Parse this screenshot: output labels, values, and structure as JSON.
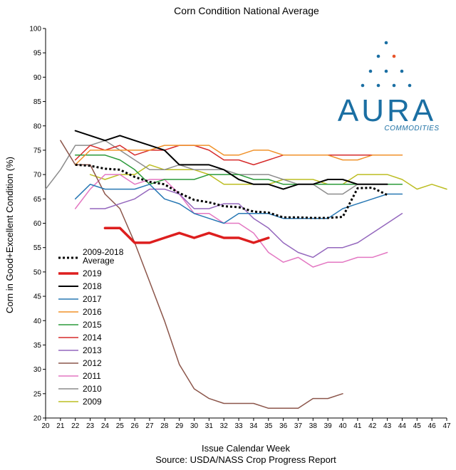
{
  "chart_data": {
    "type": "line",
    "title": "Corn Condition National Average",
    "xlabel": "Issue Calendar Week",
    "source": "Source: USDA/NASS Crop Progress Report",
    "ylabel": "Corn in Good+Excellent Condition (%)",
    "xlim": [
      20,
      47
    ],
    "ylim": [
      20,
      100
    ],
    "x_ticks": [
      20,
      21,
      22,
      23,
      24,
      25,
      26,
      27,
      28,
      29,
      30,
      31,
      32,
      33,
      34,
      35,
      36,
      37,
      38,
      39,
      40,
      41,
      42,
      43,
      44,
      45,
      46,
      47
    ],
    "y_ticks": [
      20,
      25,
      30,
      35,
      40,
      45,
      50,
      55,
      60,
      65,
      70,
      75,
      80,
      85,
      90,
      95,
      100
    ],
    "legend_position": "left",
    "series": [
      {
        "name": "2009-2018 Average",
        "label_lines": [
          "2009-2018",
          "Average"
        ],
        "color": "#000000",
        "dashed": true,
        "width": 3,
        "x": [
          22,
          23,
          24,
          25,
          26,
          27,
          28,
          29,
          30,
          31,
          32,
          33,
          34,
          35,
          36,
          37,
          38,
          39,
          40,
          41,
          42,
          43
        ],
        "y": [
          72,
          71.8,
          71.2,
          71,
          69.5,
          68.5,
          68,
          66.2,
          64.8,
          64.3,
          63.5,
          63.3,
          62.4,
          62.2,
          61.2,
          61.2,
          61.1,
          61.1,
          61.3,
          67.2,
          67.3,
          65.8
        ]
      },
      {
        "name": "2019",
        "color": "#dd1e1e",
        "width": 3.5,
        "x": [
          24,
          25,
          26,
          27,
          28,
          29,
          30,
          31,
          32,
          33,
          34,
          35
        ],
        "y": [
          59,
          59,
          56,
          56,
          57,
          58,
          57,
          58,
          57,
          57,
          56,
          57
        ]
      },
      {
        "name": "2018",
        "color": "#000000",
        "width": 2,
        "x": [
          22,
          23,
          24,
          25,
          26,
          27,
          28,
          29,
          30,
          31,
          32,
          33,
          34,
          35,
          36,
          37,
          38,
          39,
          40,
          41,
          42,
          43
        ],
        "y": [
          79,
          78,
          77,
          78,
          77,
          76,
          75,
          72,
          72,
          72,
          71,
          69,
          68,
          68,
          67,
          68,
          68,
          69,
          69,
          68,
          68,
          68
        ]
      },
      {
        "name": "2017",
        "color": "#2878b4",
        "width": 1.5,
        "x": [
          22,
          23,
          24,
          25,
          26,
          27,
          28,
          29,
          30,
          31,
          32,
          33,
          34,
          35,
          36,
          37,
          38,
          39,
          40,
          41,
          42,
          43,
          44
        ],
        "y": [
          65,
          68,
          67,
          67,
          67,
          68,
          65,
          64,
          62,
          61,
          60,
          62,
          62,
          62,
          61,
          61,
          61,
          61,
          63,
          64,
          65,
          66,
          66
        ]
      },
      {
        "name": "2016",
        "color": "#f0922a",
        "width": 1.5,
        "x": [
          22,
          23,
          24,
          25,
          26,
          27,
          28,
          29,
          30,
          31,
          32,
          33,
          34,
          35,
          36,
          37,
          38,
          39,
          40,
          41,
          42,
          43,
          44
        ],
        "y": [
          72,
          75,
          75,
          75,
          75,
          75,
          76,
          76,
          76,
          76,
          74,
          74,
          75,
          75,
          74,
          74,
          74,
          74,
          73,
          73,
          74,
          74,
          74
        ]
      },
      {
        "name": "2015",
        "color": "#2b9a3a",
        "width": 1.5,
        "x": [
          22,
          23,
          24,
          25,
          26,
          27,
          28,
          29,
          30,
          31,
          32,
          33,
          34,
          35,
          36,
          37,
          38,
          39,
          40,
          41,
          42,
          43,
          44
        ],
        "y": [
          74,
          74,
          74,
          73,
          71,
          68,
          69,
          69,
          69,
          70,
          70,
          70,
          69,
          69,
          68,
          68,
          68,
          68,
          68,
          68,
          68,
          68,
          68
        ]
      },
      {
        "name": "2014",
        "color": "#d62b2b",
        "width": 1.5,
        "x": [
          22,
          23,
          24,
          25,
          26,
          27,
          28,
          29,
          30,
          31,
          32,
          33,
          34,
          35,
          36,
          37,
          38,
          39,
          40,
          41,
          42,
          43,
          44
        ],
        "y": [
          73,
          76,
          75,
          76,
          74,
          75,
          75,
          76,
          76,
          75,
          73,
          73,
          72,
          73,
          74,
          74,
          74,
          74,
          74,
          74,
          74,
          74,
          74
        ]
      },
      {
        "name": "2013",
        "color": "#9467bd",
        "width": 1.5,
        "x": [
          23,
          24,
          25,
          26,
          27,
          28,
          29,
          30,
          31,
          32,
          33,
          34,
          35,
          36,
          37,
          38,
          39,
          40,
          41,
          42,
          43,
          44
        ],
        "y": [
          63,
          63,
          64,
          65,
          67,
          67,
          66,
          63,
          63,
          64,
          64,
          61,
          59,
          56,
          54,
          53,
          55,
          55,
          56,
          58,
          60,
          62
        ]
      },
      {
        "name": "2012",
        "color": "#8c564b",
        "width": 1.5,
        "x": [
          21,
          22,
          23,
          24,
          25,
          26,
          27,
          28,
          29,
          30,
          31,
          32,
          33,
          34,
          35,
          36,
          37,
          38,
          39,
          40
        ],
        "y": [
          77,
          72,
          72,
          66,
          63,
          56,
          48,
          40,
          31,
          26,
          24,
          23,
          23,
          23,
          22,
          22,
          22,
          24,
          24,
          25
        ]
      },
      {
        "name": "2011",
        "color": "#e377c2",
        "width": 1.5,
        "x": [
          22,
          23,
          24,
          25,
          26,
          27,
          28,
          29,
          30,
          31,
          32,
          33,
          34,
          35,
          36,
          37,
          38,
          39,
          40,
          41,
          42,
          43
        ],
        "y": [
          63,
          67,
          70,
          70,
          68,
          69,
          69,
          66,
          62,
          62,
          60,
          60,
          58,
          54,
          52,
          53,
          51,
          52,
          52,
          53,
          53,
          54
        ]
      },
      {
        "name": "2010",
        "color": "#8c8c8c",
        "width": 1.5,
        "x": [
          20,
          21,
          22,
          23,
          24,
          25,
          26,
          27,
          28,
          29,
          30,
          31,
          32,
          33,
          34,
          35,
          36,
          37,
          38,
          39,
          40,
          41
        ],
        "y": [
          67,
          71,
          76,
          76,
          77,
          75,
          73,
          71,
          71,
          72,
          71,
          71,
          71,
          70,
          70,
          70,
          69,
          68,
          68,
          66,
          66,
          68
        ]
      },
      {
        "name": "2009",
        "color": "#bcbd22",
        "width": 1.5,
        "x": [
          23,
          24,
          25,
          26,
          27,
          28,
          29,
          30,
          31,
          32,
          33,
          34,
          35,
          36,
          37,
          38,
          39,
          40,
          41,
          42,
          43,
          44,
          45,
          46,
          47
        ],
        "y": [
          70,
          69,
          70,
          70,
          72,
          71,
          71,
          71,
          70,
          68,
          68,
          68,
          68,
          69,
          69,
          69,
          68,
          68,
          70,
          70,
          70,
          69,
          67,
          68,
          67
        ]
      }
    ]
  },
  "logo": {
    "name": "AURA",
    "subtitle": "COMMODITIES",
    "dot_color": "#1b6fa3",
    "accent_color": "#e8542a"
  }
}
